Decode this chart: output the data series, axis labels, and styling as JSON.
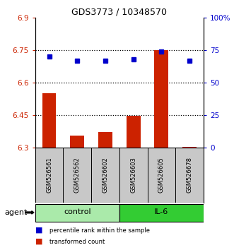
{
  "title": "GDS3773 / 10348570",
  "samples": [
    "GSM526561",
    "GSM526562",
    "GSM526602",
    "GSM526603",
    "GSM526605",
    "GSM526678"
  ],
  "bar_values": [
    6.55,
    6.355,
    6.37,
    6.445,
    6.748,
    6.302
  ],
  "dot_values": [
    70,
    67,
    67,
    68,
    74,
    67
  ],
  "bar_bottom": 6.3,
  "ylim_left": [
    6.3,
    6.9
  ],
  "ylim_right": [
    0,
    100
  ],
  "yticks_left": [
    6.3,
    6.45,
    6.6,
    6.75,
    6.9
  ],
  "ytick_labels_left": [
    "6.3",
    "6.45",
    "6.6",
    "6.75",
    "6.9"
  ],
  "yticks_right": [
    0,
    25,
    50,
    75,
    100
  ],
  "ytick_labels_right": [
    "0",
    "25",
    "50",
    "75",
    "100%"
  ],
  "hlines": [
    6.45,
    6.6,
    6.75
  ],
  "groups": [
    {
      "label": "control",
      "indices": [
        0,
        1,
        2
      ],
      "color": "#AAEAAA"
    },
    {
      "label": "IL-6",
      "indices": [
        3,
        4,
        5
      ],
      "color": "#33CC33"
    }
  ],
  "bar_color": "#CC2200",
  "dot_color": "#0000CC",
  "agent_label": "agent",
  "legend_bar_label": "transformed count",
  "legend_dot_label": "percentile rank within the sample",
  "left_tick_color": "#CC2200",
  "right_tick_color": "#0000CC",
  "label_bg_color": "#C8C8C8"
}
